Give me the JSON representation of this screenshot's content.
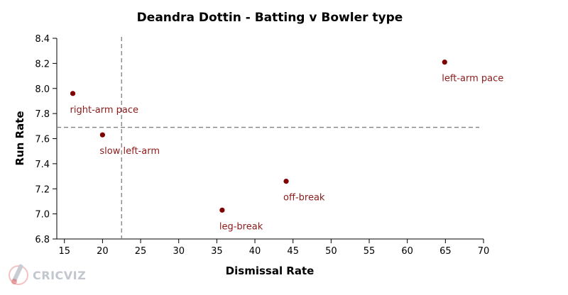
{
  "chart_data": {
    "type": "scatter",
    "title": "Deandra Dottin - Batting v Bowler type",
    "xlabel": "Dismissal Rate",
    "ylabel": "Run Rate",
    "xlim": [
      14,
      70
    ],
    "ylim": [
      6.8,
      8.4
    ],
    "xticks": [
      15,
      20,
      25,
      30,
      35,
      40,
      45,
      50,
      55,
      60,
      65,
      70
    ],
    "yticks": [
      6.8,
      7.0,
      7.2,
      7.4,
      7.6,
      7.8,
      8.0,
      8.2,
      8.4
    ],
    "points": [
      {
        "label": "right-arm pace",
        "x": 16.1,
        "y": 7.96
      },
      {
        "label": "slow left-arm",
        "x": 20.0,
        "y": 7.63
      },
      {
        "label": "leg-break",
        "x": 35.7,
        "y": 7.03
      },
      {
        "label": "off-break",
        "x": 44.1,
        "y": 7.26
      },
      {
        "label": "left-arm pace",
        "x": 64.9,
        "y": 8.21
      }
    ],
    "reference_lines": {
      "x": 22.5,
      "y": 7.69
    },
    "point_color": "#7f0000",
    "label_color": "#8b1a1a",
    "reference_color": "#808080",
    "grid": false,
    "legend": "none"
  },
  "branding": {
    "logo_text": "CRICVIZ",
    "logo_color": "#c2c7ce",
    "logo_icon": "cricket-bat-ball-icon"
  }
}
